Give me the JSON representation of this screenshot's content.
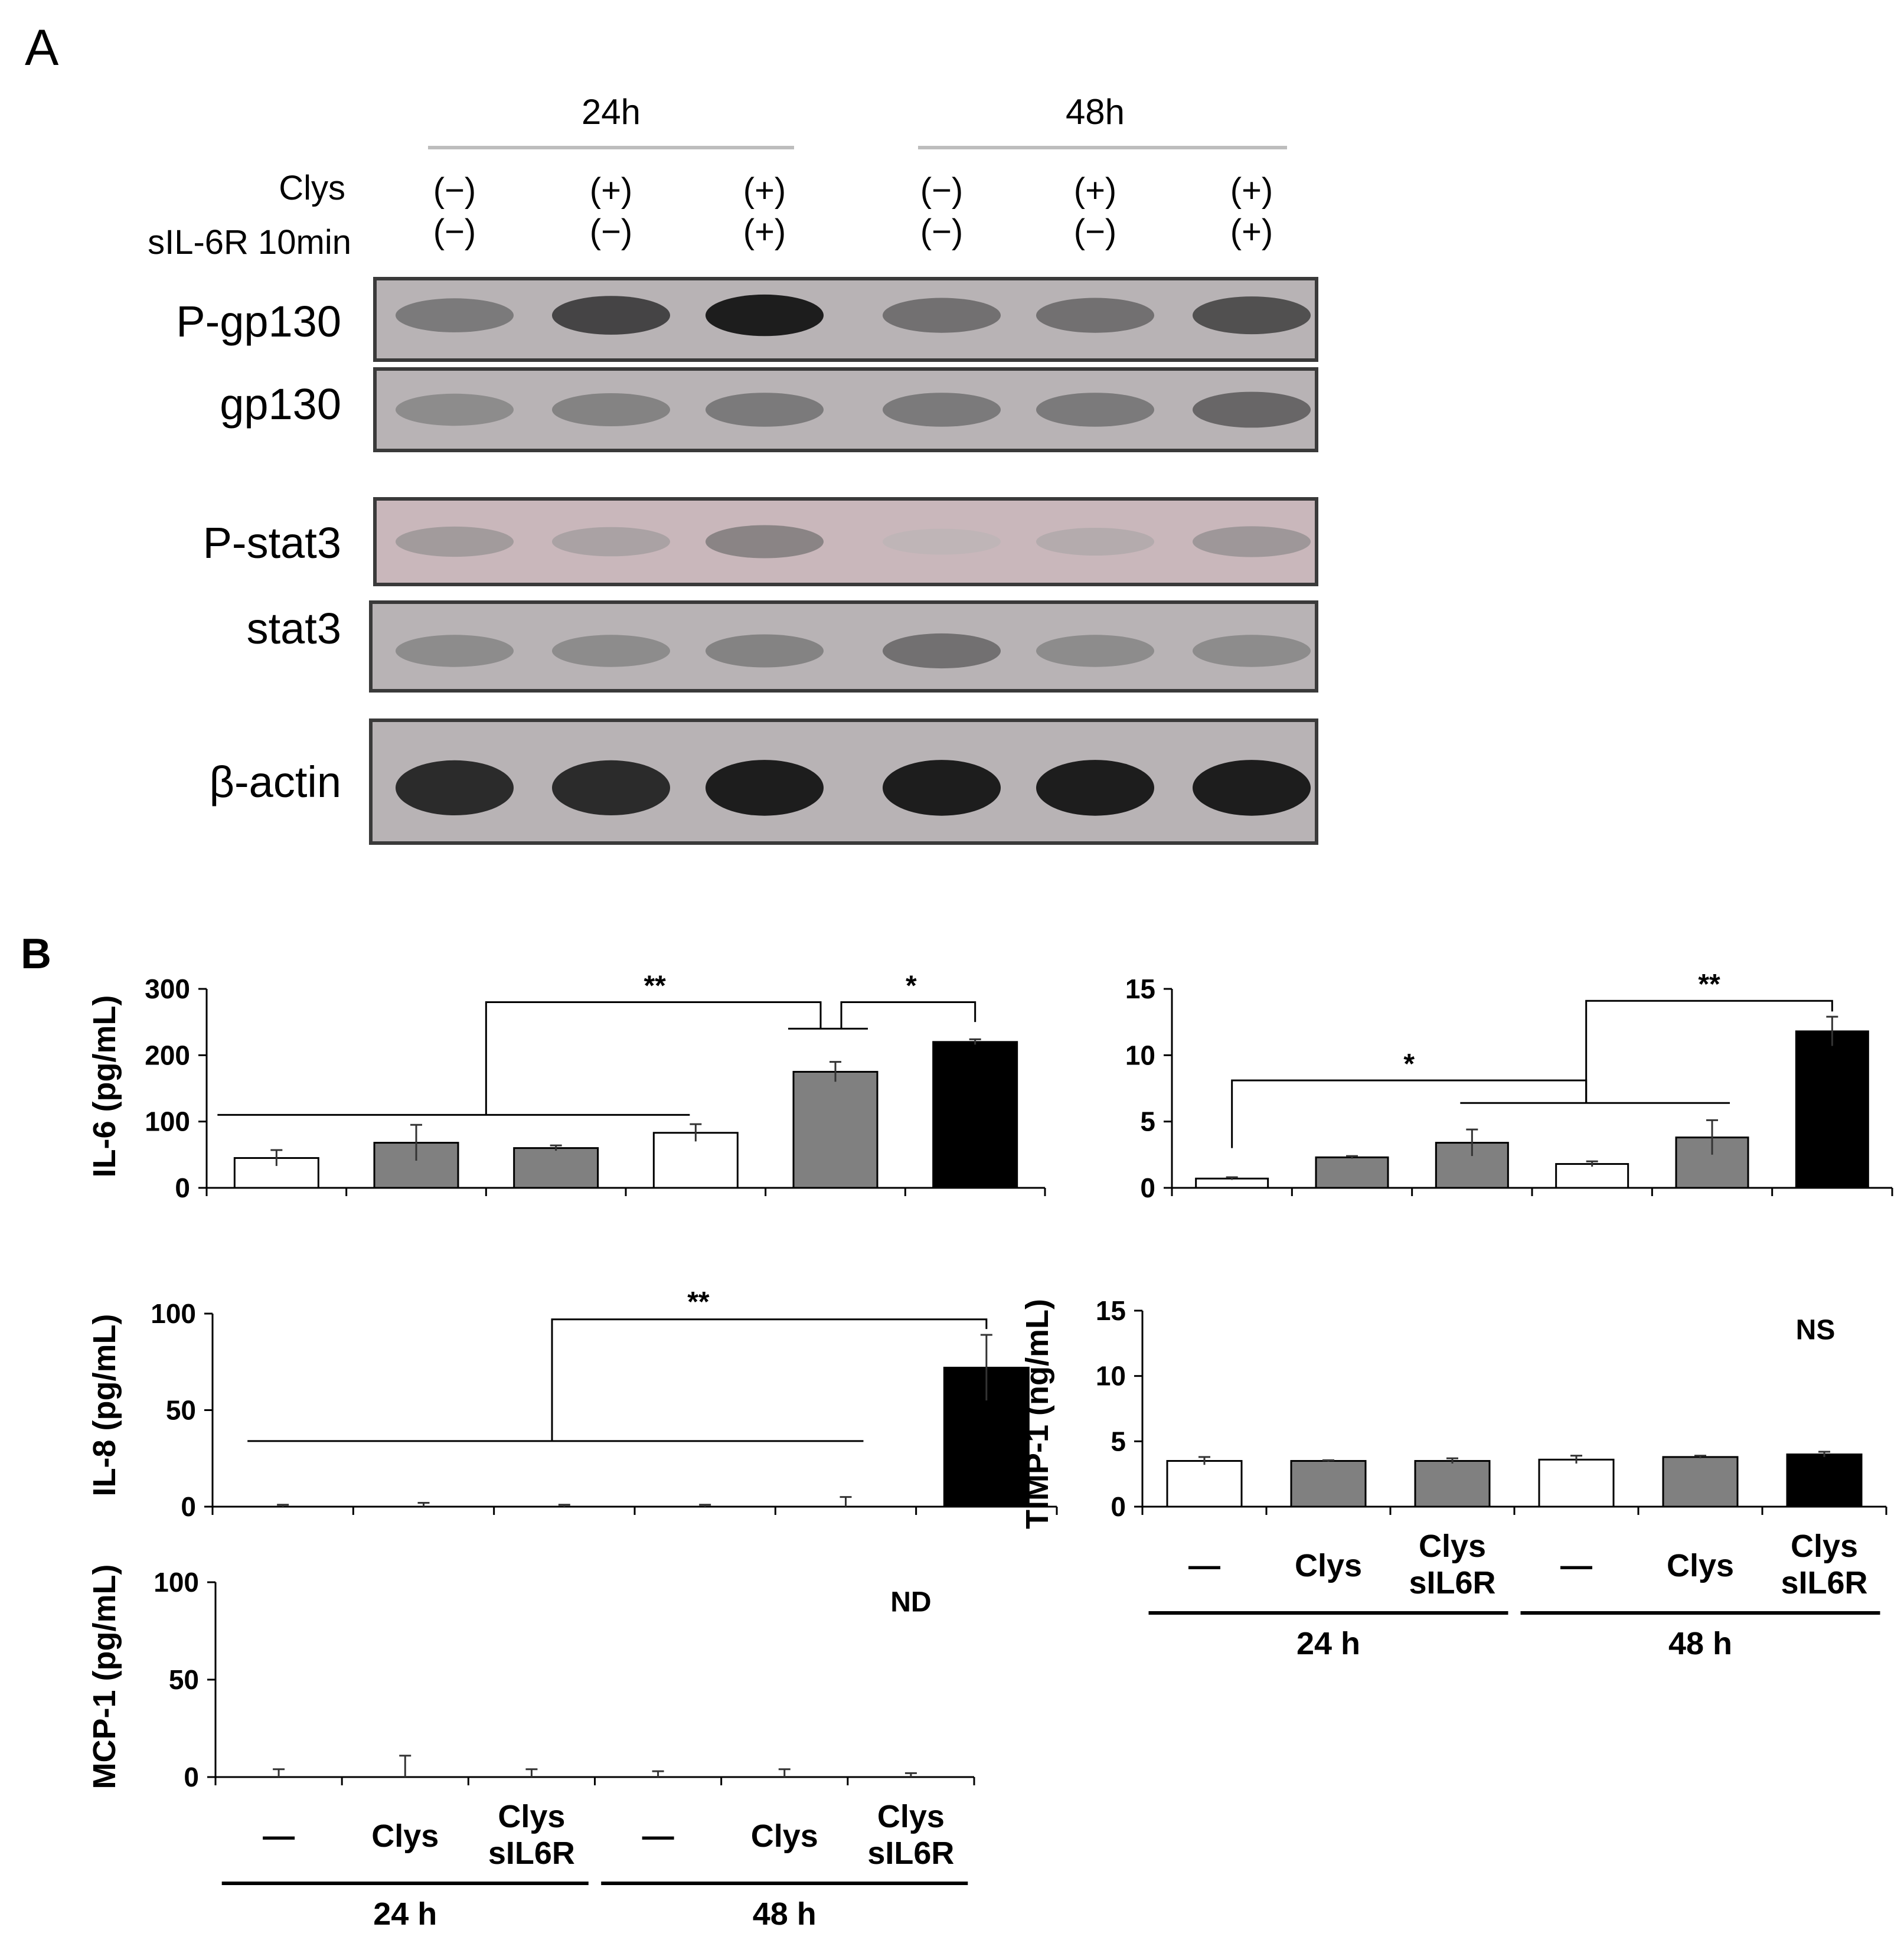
{
  "panel_a": {
    "letter": "A",
    "time_groups": [
      "24h",
      "48h"
    ],
    "condition_rows": [
      {
        "label": "Clys",
        "values": [
          "(−)",
          "(+)",
          "(+)",
          "(−)",
          "(+)",
          "(+)"
        ]
      },
      {
        "label": "sIL-6R 10min",
        "values": [
          "(−)",
          "(−)",
          "(+)",
          "(−)",
          "(−)",
          "(+)"
        ]
      }
    ],
    "blots": [
      {
        "label": "P-gp130",
        "band_intensity": [
          0.55,
          0.8,
          0.95,
          0.6,
          0.6,
          0.75
        ]
      },
      {
        "label": "gp130",
        "band_intensity": [
          0.45,
          0.5,
          0.55,
          0.55,
          0.55,
          0.65
        ]
      },
      {
        "label": "P-stat3",
        "band_intensity": [
          0.35,
          0.3,
          0.5,
          0.12,
          0.22,
          0.38
        ]
      },
      {
        "label": "stat3",
        "band_intensity": [
          0.45,
          0.45,
          0.5,
          0.6,
          0.45,
          0.45
        ]
      },
      {
        "label": "β-actin",
        "band_intensity": [
          0.9,
          0.9,
          0.95,
          0.95,
          0.95,
          0.95
        ]
      }
    ],
    "colors": {
      "blot_bg": "#b8b3b5",
      "pstat3_bg": "#c9b7bb",
      "band": "#1a1a1a"
    }
  },
  "panel_b": {
    "letter": "B",
    "categories": [
      "—",
      "Clys",
      "Clys sIL6R",
      "—",
      "Clys",
      "Clys sIL6R"
    ],
    "category_lines": [
      [
        "—"
      ],
      [
        "Clys"
      ],
      [
        "Clys",
        "sIL6R"
      ],
      [
        "—"
      ],
      [
        "Clys"
      ],
      [
        "Clys",
        "sIL6R"
      ]
    ],
    "groups": [
      "24 h",
      "48 h"
    ],
    "bar_fills": [
      "#ffffff",
      "#808080",
      "#808080",
      "#ffffff",
      "#808080",
      "#000000"
    ]
  },
  "chart_data": [
    {
      "type": "bar",
      "ylabel": "IL-6 (pg/mL)",
      "ylim": [
        0,
        300
      ],
      "yticks": [
        "0",
        "100",
        "200",
        "300"
      ],
      "values": [
        45,
        68,
        60,
        83,
        175,
        220
      ],
      "errors": [
        12,
        27,
        4,
        13,
        15,
        4
      ],
      "annotations": [
        "**",
        "*"
      ]
    },
    {
      "type": "bar",
      "ylabel": "",
      "ylim": [
        0,
        15
      ],
      "yticks": [
        "0",
        "5",
        "10",
        "15"
      ],
      "values": [
        0.7,
        2.3,
        3.4,
        1.8,
        3.8,
        11.8
      ],
      "errors": [
        0.1,
        0.1,
        1.0,
        0.2,
        1.3,
        1.1
      ],
      "annotations": [
        "*",
        "**"
      ]
    },
    {
      "type": "bar",
      "ylabel": "IL-8 (pg/mL)",
      "ylim": [
        0,
        100
      ],
      "yticks": [
        "0",
        "50",
        "100"
      ],
      "values": [
        0,
        0,
        0,
        0,
        0,
        72
      ],
      "errors": [
        1,
        2,
        1,
        1,
        5,
        17
      ],
      "annotations": [
        "**"
      ]
    },
    {
      "type": "bar",
      "ylabel": "TIMP-1 (ng/mL)",
      "ylim": [
        0,
        15
      ],
      "yticks": [
        "0",
        "5",
        "10",
        "15"
      ],
      "values": [
        3.5,
        3.5,
        3.5,
        3.6,
        3.8,
        4.0
      ],
      "errors": [
        0.3,
        0.05,
        0.2,
        0.3,
        0.1,
        0.2
      ],
      "annotations": [
        "NS"
      ]
    },
    {
      "type": "bar",
      "ylabel": "MCP-1 (pg/mL)",
      "ylim": [
        0,
        100
      ],
      "yticks": [
        "0",
        "50",
        "100"
      ],
      "values": [
        0,
        0,
        0,
        0,
        0,
        0
      ],
      "errors": [
        4,
        11,
        4,
        3,
        4,
        2
      ],
      "annotations": [
        "ND"
      ]
    }
  ]
}
